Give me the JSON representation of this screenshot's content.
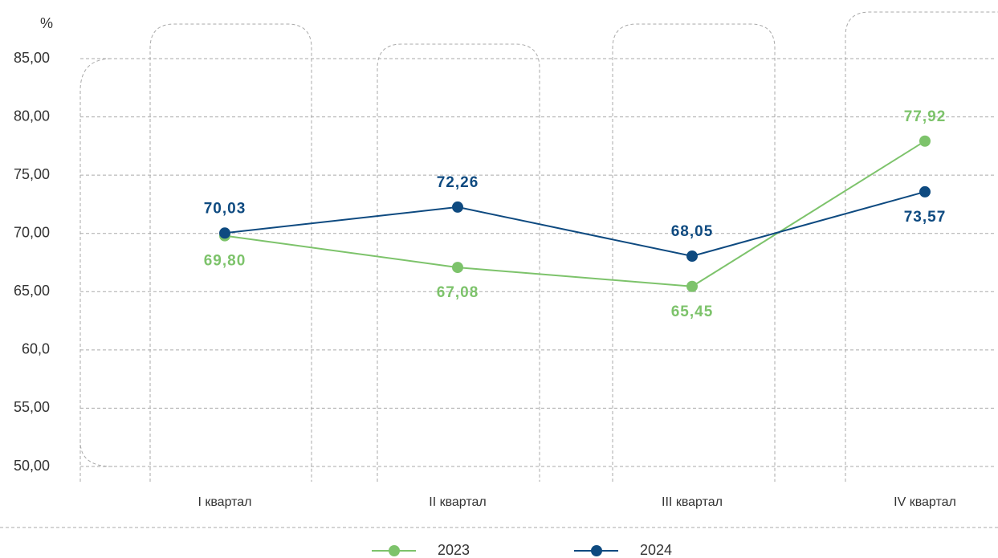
{
  "chart_data": {
    "type": "line",
    "y_label": "%",
    "categories": [
      "I квартал",
      "II квартал",
      "III квартал",
      "IV квартал"
    ],
    "series": [
      {
        "name": "2023",
        "color": "#7dc36b",
        "values": [
          69.8,
          67.08,
          65.45,
          77.92
        ],
        "value_labels": [
          "69,80",
          "67,08",
          "65,45",
          "77,92"
        ]
      },
      {
        "name": "2024",
        "color": "#0e4a80",
        "values": [
          70.03,
          72.26,
          68.05,
          73.57
        ],
        "value_labels": [
          "70,03",
          "72,26",
          "68,05",
          "73,57"
        ]
      }
    ],
    "ylim": [
      50,
      85
    ],
    "yticks": [
      {
        "value": 50,
        "label": "50,00"
      },
      {
        "value": 55,
        "label": "55,00"
      },
      {
        "value": 60,
        "label": "60,0"
      },
      {
        "value": 65,
        "label": "65,00"
      },
      {
        "value": 70,
        "label": "70,00"
      },
      {
        "value": 75,
        "label": "75,00"
      },
      {
        "value": 80,
        "label": "80,00"
      },
      {
        "value": 85,
        "label": "85,00"
      }
    ],
    "grid": true
  }
}
